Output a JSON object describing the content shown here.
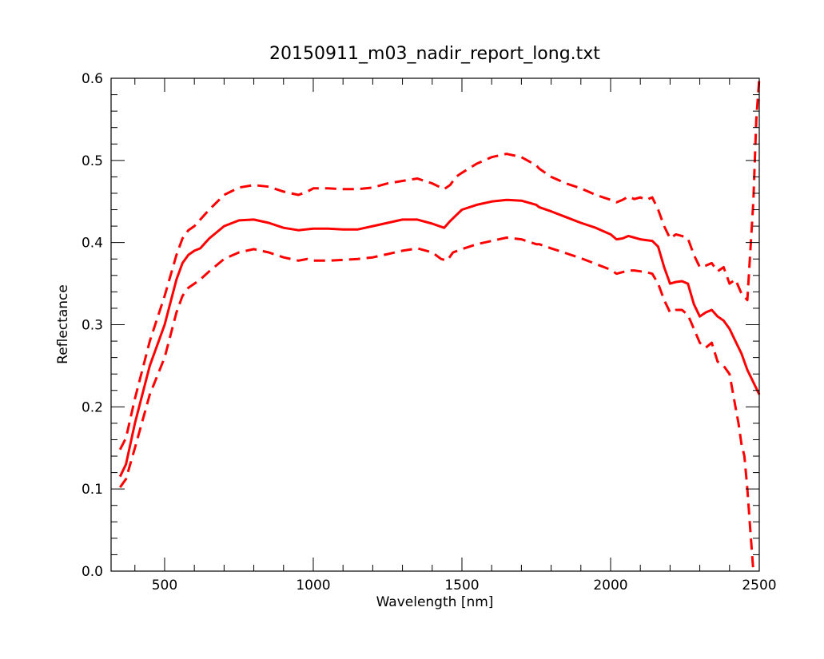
{
  "chart_data": {
    "type": "line",
    "title": "20150911_m03_nadir_report_long.txt",
    "xlabel": "Wavelength [nm]",
    "ylabel": "Reflectance",
    "xlim": [
      320,
      2500
    ],
    "ylim": [
      0.0,
      0.6
    ],
    "x_ticks": [
      500,
      1000,
      1500,
      2000,
      2500
    ],
    "x_tick_labels": [
      "500",
      "1000",
      "1500",
      "2000",
      "2500"
    ],
    "y_ticks": [
      0.0,
      0.1,
      0.2,
      0.3,
      0.4,
      0.5,
      0.6
    ],
    "y_tick_labels": [
      "0.0",
      "0.1",
      "0.2",
      "0.3",
      "0.4",
      "0.5",
      "0.6"
    ],
    "grid": false,
    "legend": "none",
    "color": "#ff0000",
    "series": [
      {
        "style": "solid",
        "x": [
          350,
          370,
          400,
          450,
          500,
          540,
          560,
          580,
          600,
          620,
          650,
          700,
          750,
          800,
          850,
          900,
          950,
          1000,
          1050,
          1100,
          1150,
          1200,
          1250,
          1300,
          1350,
          1400,
          1440,
          1460,
          1480,
          1500,
          1550,
          1600,
          1650,
          1700,
          1750,
          1760,
          1800,
          1850,
          1900,
          1950,
          2000,
          2020,
          2040,
          2060,
          2080,
          2100,
          2120,
          2140,
          2160,
          2180,
          2200,
          2220,
          2240,
          2260,
          2280,
          2300,
          2320,
          2340,
          2360,
          2380,
          2400,
          2420,
          2440,
          2460,
          2480,
          2500
        ],
        "y": [
          0.115,
          0.13,
          0.18,
          0.25,
          0.3,
          0.355,
          0.375,
          0.385,
          0.39,
          0.393,
          0.405,
          0.42,
          0.427,
          0.428,
          0.424,
          0.418,
          0.415,
          0.417,
          0.417,
          0.416,
          0.416,
          0.42,
          0.424,
          0.428,
          0.428,
          0.423,
          0.418,
          0.426,
          0.433,
          0.44,
          0.446,
          0.45,
          0.452,
          0.451,
          0.446,
          0.443,
          0.438,
          0.431,
          0.424,
          0.418,
          0.41,
          0.404,
          0.405,
          0.408,
          0.406,
          0.404,
          0.403,
          0.402,
          0.395,
          0.37,
          0.35,
          0.352,
          0.353,
          0.35,
          0.325,
          0.31,
          0.315,
          0.318,
          0.31,
          0.305,
          0.295,
          0.28,
          0.265,
          0.245,
          0.23,
          0.215
        ]
      },
      {
        "style": "dashed",
        "x": [
          350,
          370,
          400,
          450,
          500,
          540,
          560,
          580,
          600,
          620,
          650,
          700,
          750,
          800,
          850,
          900,
          950,
          980,
          1000,
          1050,
          1100,
          1150,
          1200,
          1250,
          1300,
          1350,
          1400,
          1440,
          1460,
          1480,
          1500,
          1550,
          1600,
          1650,
          1700,
          1750,
          1760,
          1800,
          1850,
          1900,
          1950,
          2000,
          2020,
          2040,
          2060,
          2080,
          2100,
          2120,
          2140,
          2160,
          2180,
          2200,
          2220,
          2240,
          2260,
          2280,
          2300,
          2320,
          2340,
          2360,
          2380,
          2400,
          2420,
          2440,
          2460,
          2480,
          2490,
          2500
        ],
        "y": [
          0.148,
          0.162,
          0.21,
          0.28,
          0.335,
          0.385,
          0.405,
          0.415,
          0.42,
          0.428,
          0.44,
          0.458,
          0.467,
          0.47,
          0.468,
          0.462,
          0.458,
          0.462,
          0.466,
          0.466,
          0.465,
          0.465,
          0.467,
          0.472,
          0.475,
          0.478,
          0.472,
          0.465,
          0.47,
          0.48,
          0.485,
          0.496,
          0.504,
          0.508,
          0.504,
          0.494,
          0.49,
          0.48,
          0.472,
          0.466,
          0.458,
          0.452,
          0.449,
          0.452,
          0.456,
          0.453,
          0.455,
          0.452,
          0.455,
          0.44,
          0.42,
          0.405,
          0.41,
          0.408,
          0.405,
          0.385,
          0.37,
          0.372,
          0.375,
          0.365,
          0.37,
          0.35,
          0.355,
          0.338,
          0.33,
          0.45,
          0.55,
          0.6
        ]
      },
      {
        "style": "dashed",
        "x": [
          350,
          370,
          400,
          450,
          500,
          540,
          560,
          580,
          600,
          620,
          650,
          700,
          750,
          800,
          850,
          900,
          950,
          980,
          1000,
          1050,
          1100,
          1150,
          1200,
          1250,
          1300,
          1350,
          1400,
          1430,
          1450,
          1470,
          1500,
          1550,
          1600,
          1650,
          1700,
          1750,
          1760,
          1800,
          1850,
          1900,
          1950,
          2000,
          2020,
          2040,
          2060,
          2080,
          2100,
          2120,
          2140,
          2160,
          2180,
          2200,
          2220,
          2240,
          2260,
          2280,
          2300,
          2320,
          2340,
          2360,
          2380,
          2400,
          2420,
          2430,
          2440,
          2450,
          2460,
          2470,
          2480
        ],
        "y": [
          0.102,
          0.112,
          0.15,
          0.215,
          0.26,
          0.315,
          0.335,
          0.345,
          0.35,
          0.355,
          0.365,
          0.38,
          0.388,
          0.392,
          0.388,
          0.382,
          0.378,
          0.38,
          0.378,
          0.378,
          0.379,
          0.38,
          0.382,
          0.386,
          0.39,
          0.393,
          0.388,
          0.38,
          0.378,
          0.388,
          0.392,
          0.398,
          0.402,
          0.406,
          0.404,
          0.398,
          0.398,
          0.393,
          0.387,
          0.381,
          0.374,
          0.367,
          0.362,
          0.364,
          0.366,
          0.366,
          0.365,
          0.364,
          0.362,
          0.35,
          0.33,
          0.315,
          0.318,
          0.318,
          0.312,
          0.295,
          0.278,
          0.272,
          0.278,
          0.255,
          0.25,
          0.24,
          0.2,
          0.18,
          0.155,
          0.14,
          0.1,
          0.05,
          0.0
        ]
      }
    ]
  }
}
